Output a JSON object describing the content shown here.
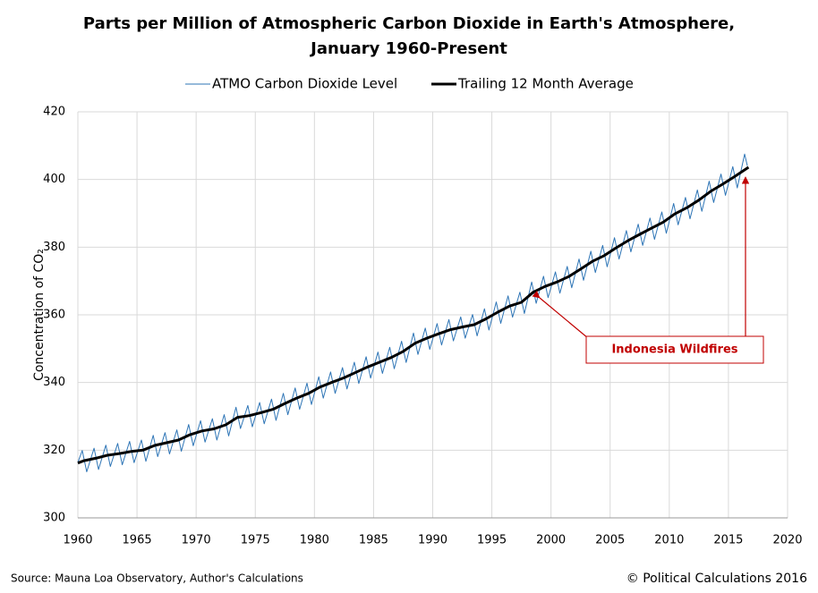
{
  "chart_data": {
    "type": "line",
    "title": [
      "Parts per Million of Atmospheric Carbon Dioxide in Earth's Atmosphere,",
      "January 1960-Present"
    ],
    "y_label": "Concentration of CO₂",
    "source": "Source: Mauna Loa Observatory, Author's Calculations",
    "credit": "© Political Calculations 2016",
    "annotation": "Indonesia Wildfires",
    "xlim": [
      1960,
      2020
    ],
    "xticks": [
      1960,
      1965,
      1970,
      1975,
      1980,
      1985,
      1990,
      1995,
      2000,
      2005,
      2010,
      2015,
      2020
    ],
    "ylim": [
      300,
      420
    ],
    "yticks": [
      300,
      320,
      340,
      360,
      380,
      400,
      420
    ],
    "grid": true,
    "series": [
      {
        "name": "ATMO Carbon Dioxide Level",
        "color": "#2e75b6",
        "width": 1,
        "x": [
          1960.0,
          1960.37,
          1960.75,
          1961.37,
          1961.75,
          1962.37,
          1962.75,
          1963.37,
          1963.75,
          1964.37,
          1964.75,
          1965.37,
          1965.75,
          1966.37,
          1966.75,
          1967.37,
          1967.75,
          1968.37,
          1968.75,
          1969.37,
          1969.75,
          1970.37,
          1970.75,
          1971.37,
          1971.75,
          1972.37,
          1972.75,
          1973.37,
          1973.75,
          1974.37,
          1974.75,
          1975.37,
          1975.75,
          1976.37,
          1976.75,
          1977.37,
          1977.75,
          1978.37,
          1978.75,
          1979.37,
          1979.75,
          1980.37,
          1980.75,
          1981.37,
          1981.75,
          1982.37,
          1982.75,
          1983.37,
          1983.75,
          1984.37,
          1984.75,
          1985.37,
          1985.75,
          1986.37,
          1986.75,
          1987.37,
          1987.75,
          1988.37,
          1988.75,
          1989.37,
          1989.75,
          1990.37,
          1990.75,
          1991.37,
          1991.75,
          1992.37,
          1992.75,
          1993.37,
          1993.75,
          1994.37,
          1994.75,
          1995.37,
          1995.75,
          1996.37,
          1996.75,
          1997.37,
          1997.75,
          1998.37,
          1998.75,
          1999.37,
          1999.75,
          2000.37,
          2000.75,
          2001.37,
          2001.75,
          2002.37,
          2002.75,
          2003.37,
          2003.75,
          2004.37,
          2004.75,
          2005.37,
          2005.75,
          2006.37,
          2006.75,
          2007.37,
          2007.75,
          2008.37,
          2008.75,
          2009.37,
          2009.75,
          2010.37,
          2010.75,
          2011.37,
          2011.75,
          2012.37,
          2012.75,
          2013.37,
          2013.75,
          2014.37,
          2014.75,
          2015.37,
          2015.75,
          2016.37,
          2016.6
        ],
        "values": [
          316.4,
          319.9,
          313.6,
          320.6,
          314.3,
          321.5,
          315.2,
          322.0,
          315.7,
          322.6,
          316.3,
          323.0,
          316.7,
          324.4,
          318.1,
          325.2,
          318.9,
          326.0,
          319.7,
          327.6,
          321.3,
          328.7,
          322.4,
          329.3,
          323.0,
          330.5,
          324.2,
          332.7,
          326.4,
          333.2,
          326.9,
          334.1,
          327.8,
          335.1,
          328.8,
          336.8,
          330.5,
          338.4,
          332.1,
          339.8,
          333.5,
          341.7,
          335.4,
          343.1,
          336.8,
          344.4,
          338.1,
          346.0,
          339.7,
          347.6,
          341.3,
          349.0,
          342.7,
          350.4,
          344.1,
          352.2,
          345.9,
          354.6,
          348.3,
          356.1,
          349.8,
          357.4,
          351.1,
          358.6,
          352.3,
          359.4,
          353.1,
          360.1,
          353.8,
          361.8,
          355.5,
          363.8,
          357.5,
          365.6,
          359.3,
          366.7,
          360.4,
          369.7,
          363.4,
          371.4,
          365.1,
          372.7,
          366.4,
          374.3,
          368.0,
          376.5,
          370.2,
          378.8,
          372.5,
          380.5,
          374.2,
          382.8,
          376.5,
          384.9,
          378.6,
          386.8,
          380.5,
          388.6,
          382.3,
          390.4,
          384.1,
          392.9,
          386.6,
          394.7,
          388.4,
          396.9,
          390.6,
          399.5,
          393.2,
          401.6,
          395.3,
          403.8,
          397.5,
          407.5,
          404.0
        ]
      },
      {
        "name": "Trailing 12 Month Average",
        "color": "#000000",
        "width": 3,
        "x": [
          1960.0,
          1960.5,
          1961.5,
          1962.5,
          1963.5,
          1964.5,
          1965.5,
          1966.5,
          1967.5,
          1968.5,
          1969.5,
          1970.5,
          1971.5,
          1972.5,
          1973.5,
          1974.5,
          1975.5,
          1976.5,
          1977.5,
          1978.5,
          1979.5,
          1980.5,
          1981.5,
          1982.5,
          1983.5,
          1984.5,
          1985.5,
          1986.5,
          1987.5,
          1988.5,
          1989.5,
          1990.5,
          1991.5,
          1992.5,
          1993.5,
          1994.5,
          1995.5,
          1996.5,
          1997.5,
          1998.5,
          1999.5,
          2000.5,
          2001.5,
          2002.5,
          2003.5,
          2004.5,
          2005.5,
          2006.5,
          2007.5,
          2008.5,
          2009.5,
          2010.5,
          2011.5,
          2012.5,
          2013.5,
          2014.5,
          2015.5,
          2016.7
        ],
        "values": [
          316.2,
          316.9,
          317.6,
          318.5,
          319.0,
          319.6,
          320.0,
          321.4,
          322.2,
          323.0,
          324.6,
          325.7,
          326.3,
          327.5,
          329.7,
          330.2,
          331.1,
          332.1,
          333.8,
          335.4,
          336.8,
          338.7,
          340.1,
          341.4,
          343.0,
          344.6,
          346.0,
          347.4,
          349.2,
          351.6,
          353.1,
          354.4,
          355.6,
          356.4,
          357.1,
          358.8,
          360.8,
          362.6,
          363.7,
          366.7,
          368.4,
          369.7,
          371.3,
          373.5,
          375.8,
          377.5,
          379.8,
          381.9,
          383.8,
          385.6,
          387.4,
          389.9,
          391.7,
          393.9,
          396.5,
          398.6,
          400.8,
          403.6
        ]
      }
    ]
  }
}
